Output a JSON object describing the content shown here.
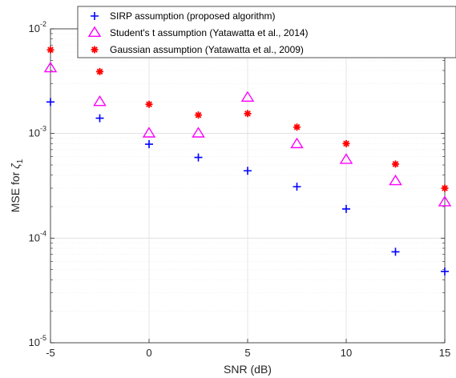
{
  "chart_data": {
    "type": "scatter",
    "xlabel": "SNR (dB)",
    "ylabel": {
      "prefix": "MSE for ",
      "symbol": "ζ",
      "subscript": "1"
    },
    "x": [
      -5,
      -2.5,
      0,
      2.5,
      5,
      7.5,
      10,
      12.5,
      15
    ],
    "xlim": [
      -5,
      15
    ],
    "ylim": [
      1e-05,
      0.01
    ],
    "yscale": "log",
    "x_ticks": [
      "-5",
      "0",
      "5",
      "10",
      "15"
    ],
    "y_ticks": [
      {
        "base": "10",
        "exp": "-5"
      },
      {
        "base": "10",
        "exp": "-4"
      },
      {
        "base": "10",
        "exp": "-3"
      },
      {
        "base": "10",
        "exp": "-2"
      }
    ],
    "grid": true,
    "legend_position": "top-right",
    "series": [
      {
        "name": "SIRP assumption (proposed algorithm)",
        "marker": "plus",
        "color": "#0000ff",
        "values": [
          0.002,
          0.0014,
          0.00079,
          0.00059,
          0.00044,
          0.00031,
          0.00019,
          7.4e-05,
          4.8e-05
        ]
      },
      {
        "name": "Student's t assumption (Yatawatta et al., 2014)",
        "marker": "triangle",
        "color": "#ff00ff",
        "values": [
          0.0042,
          0.002,
          0.001,
          0.001,
          0.0022,
          0.00079,
          0.00056,
          0.00035,
          0.00022
        ]
      },
      {
        "name": "Gaussian assumption (Yatawatta et al., 2009)",
        "marker": "asterisk",
        "color": "#ff0000",
        "values": [
          0.0063,
          0.0039,
          0.0019,
          0.0015,
          0.00155,
          0.00115,
          0.0008,
          0.00051,
          0.0003
        ]
      }
    ]
  }
}
